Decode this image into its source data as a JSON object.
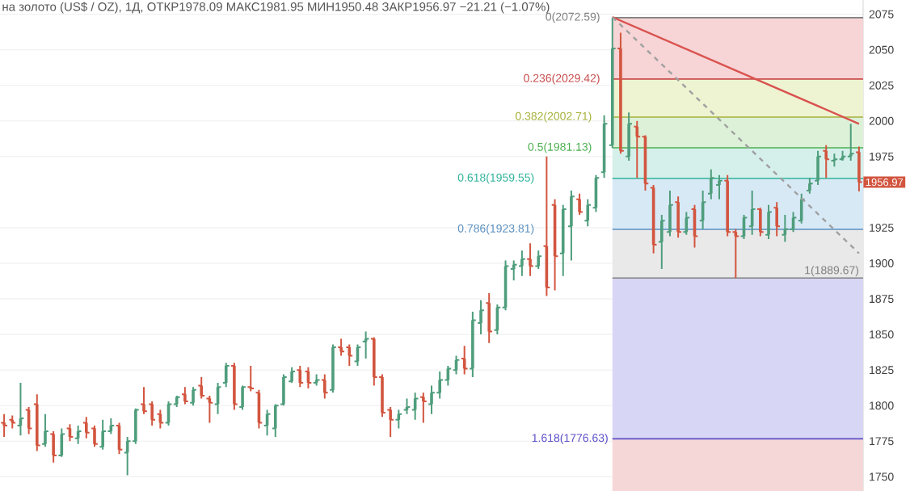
{
  "chart_data": {
    "type": "candlestick",
    "title": "на золото (US$ / OZ), 1Д, ОТКР1978.09 МАКС1981.95 МИН1950.48 ЗАКР1956.97 −21.21 (−1.07%)",
    "categories": [
      null,
      null,
      null,
      null,
      null,
      null,
      null,
      null,
      null,
      null,
      null,
      null,
      null,
      null,
      null,
      null,
      null,
      null,
      null,
      null,
      null,
      null,
      null,
      null,
      null,
      null,
      null,
      null,
      null,
      null,
      null,
      null,
      null,
      null,
      null,
      null,
      null,
      null,
      null,
      null,
      null,
      null,
      null,
      null,
      null,
      null,
      null,
      null,
      null,
      null,
      null,
      null,
      null,
      null,
      null,
      null,
      null,
      null,
      null,
      null,
      null,
      null,
      null,
      null,
      null,
      null,
      null,
      null,
      null,
      null,
      null,
      null,
      null,
      null,
      null,
      null,
      null,
      null,
      null,
      null,
      null,
      null,
      null,
      null,
      null,
      null,
      null,
      null,
      null,
      null,
      null,
      null,
      null,
      null,
      null,
      null,
      null,
      null,
      null,
      null,
      null,
      null,
      null,
      null,
      null
    ],
    "ohlc": [
      [
        1788,
        1794,
        1778,
        1786
      ],
      [
        1790,
        1793,
        1784,
        1788
      ],
      [
        1786,
        1816,
        1779,
        1791
      ],
      [
        1797,
        1799,
        1780,
        1784
      ],
      [
        1801,
        1808,
        1768,
        1772
      ],
      [
        1773,
        1794,
        1771,
        1782
      ],
      [
        1780,
        1782,
        1760,
        1765
      ],
      [
        1765,
        1784,
        1764,
        1780
      ],
      [
        1784,
        1787,
        1775,
        1778
      ],
      [
        1777,
        1786,
        1773,
        1782
      ],
      [
        1788,
        1792,
        1777,
        1781
      ],
      [
        1784,
        1786,
        1771,
        1773
      ],
      [
        1771,
        1790,
        1769,
        1782
      ],
      [
        1782,
        1791,
        1780,
        1786
      ],
      [
        1786,
        1788,
        1766,
        1769
      ],
      [
        1767,
        1778,
        1751,
        1775
      ],
      [
        1775,
        1798,
        1773,
        1797
      ],
      [
        1801,
        1813,
        1794,
        1796
      ],
      [
        1801,
        1803,
        1786,
        1790
      ],
      [
        1794,
        1797,
        1784,
        1788
      ],
      [
        1788,
        1803,
        1786,
        1801
      ],
      [
        1801,
        1807,
        1799,
        1806
      ],
      [
        1808,
        1813,
        1801,
        1803
      ],
      [
        1802,
        1813,
        1800,
        1811
      ],
      [
        1814,
        1820,
        1805,
        1807
      ],
      [
        1805,
        1807,
        1788,
        1802
      ],
      [
        1801,
        1816,
        1794,
        1813
      ],
      [
        1816,
        1830,
        1813,
        1828
      ],
      [
        1828,
        1830,
        1797,
        1801
      ],
      [
        1799,
        1814,
        1797,
        1813
      ],
      [
        1813,
        1828,
        1810,
        1812
      ],
      [
        1809,
        1811,
        1784,
        1788
      ],
      [
        1786,
        1797,
        1779,
        1794
      ],
      [
        1784,
        1801,
        1778,
        1800
      ],
      [
        1801,
        1822,
        1800,
        1820
      ],
      [
        1817,
        1827,
        1816,
        1824
      ],
      [
        1825,
        1828,
        1813,
        1816
      ],
      [
        1824,
        1827,
        1812,
        1816
      ],
      [
        1816,
        1822,
        1814,
        1818
      ],
      [
        1818,
        1822,
        1805,
        1809
      ],
      [
        1811,
        1843,
        1809,
        1841
      ],
      [
        1841,
        1847,
        1835,
        1838
      ],
      [
        1841,
        1843,
        1828,
        1835
      ],
      [
        1831,
        1843,
        1828,
        1841
      ],
      [
        1845,
        1852,
        1833,
        1847
      ],
      [
        1847,
        1848,
        1814,
        1820
      ],
      [
        1820,
        1822,
        1792,
        1795
      ],
      [
        1797,
        1799,
        1778,
        1790
      ],
      [
        1790,
        1797,
        1784,
        1794
      ],
      [
        1797,
        1805,
        1794,
        1799
      ],
      [
        1797,
        1809,
        1790,
        1805
      ],
      [
        1806,
        1809,
        1788,
        1803
      ],
      [
        1801,
        1814,
        1794,
        1809
      ],
      [
        1809,
        1824,
        1805,
        1818
      ],
      [
        1818,
        1828,
        1814,
        1826
      ],
      [
        1825,
        1835,
        1822,
        1832
      ],
      [
        1833,
        1842,
        1822,
        1826
      ],
      [
        1826,
        1866,
        1820,
        1860
      ],
      [
        1858,
        1874,
        1850,
        1867
      ],
      [
        1872,
        1879,
        1844,
        1852
      ],
      [
        1853,
        1871,
        1850,
        1869
      ],
      [
        1869,
        1902,
        1867,
        1898
      ],
      [
        1896,
        1902,
        1888,
        1899
      ],
      [
        1898,
        1909,
        1891,
        1903
      ],
      [
        1903,
        1914,
        1891,
        1898
      ],
      [
        1898,
        1909,
        1896,
        1905
      ],
      [
        1912,
        1975,
        1877,
        1883
      ],
      [
        1941,
        1945,
        1881,
        1905
      ],
      [
        1907,
        1941,
        1891,
        1938
      ],
      [
        1926,
        1951,
        1902,
        1947
      ],
      [
        1945,
        1949,
        1934,
        1936
      ],
      [
        1930,
        1945,
        1926,
        1941
      ],
      [
        1939,
        1962,
        1936,
        1960
      ],
      [
        1964,
        2004,
        1960,
        1998
      ],
      [
        1983,
        2072.59,
        1981,
        2051
      ],
      [
        2051,
        2062,
        1977,
        1979
      ],
      [
        1975,
        2006,
        1972,
        1998
      ],
      [
        1996,
        2000,
        1960,
        1989
      ],
      [
        1989,
        1990,
        1951,
        1956
      ],
      [
        1953,
        1955,
        1907,
        1913
      ],
      [
        1915,
        1934,
        1896,
        1930
      ],
      [
        1922,
        1951,
        1919,
        1941
      ],
      [
        1943,
        1947,
        1918,
        1922
      ],
      [
        1922,
        1936,
        1920,
        1932
      ],
      [
        1938,
        1941,
        1911,
        1919
      ],
      [
        1930,
        1951,
        1924,
        1943
      ],
      [
        1949,
        1966,
        1945,
        1960
      ],
      [
        1955,
        1962,
        1945,
        1958
      ],
      [
        1958,
        1962,
        1919,
        1922
      ],
      [
        1922,
        1924,
        1889.67,
        1919
      ],
      [
        1919,
        1934,
        1917,
        1932
      ],
      [
        1926,
        1951,
        1920,
        1938
      ],
      [
        1938,
        1939,
        1919,
        1922
      ],
      [
        1920,
        1941,
        1917,
        1936
      ],
      [
        1939,
        1943,
        1919,
        1926
      ],
      [
        1920,
        1934,
        1915,
        1924
      ],
      [
        1924,
        1936,
        1922,
        1932
      ],
      [
        1930,
        1949,
        1928,
        1945
      ],
      [
        1951,
        1960,
        1949,
        1956
      ],
      [
        1958,
        1979,
        1955,
        1975
      ],
      [
        1979,
        1983,
        1960,
        1973
      ],
      [
        1972,
        1977,
        1968,
        1973
      ],
      [
        1973,
        1979,
        1972,
        1975
      ],
      [
        1975,
        1998,
        1972,
        1977
      ],
      [
        1978.09,
        1981.95,
        1950.48,
        1956.97
      ]
    ],
    "colors": [
      "#d2553f",
      "#d2553f",
      "#4f9d7c",
      "#d2553f",
      "#d2553f",
      "#4f9d7c",
      "#d2553f",
      "#4f9d7c",
      "#d2553f",
      "#4f9d7c",
      "#d2553f",
      "#d2553f",
      "#4f9d7c",
      "#4f9d7c",
      "#d2553f",
      "#4f9d7c",
      "#4f9d7c",
      "#d2553f",
      "#d2553f",
      "#d2553f",
      "#4f9d7c",
      "#4f9d7c",
      "#d2553f",
      "#4f9d7c",
      "#d2553f",
      "#d2553f",
      "#4f9d7c",
      "#4f9d7c",
      "#d2553f",
      "#4f9d7c",
      "#d2553f",
      "#d2553f",
      "#4f9d7c",
      "#4f9d7c",
      "#4f9d7c",
      "#4f9d7c",
      "#d2553f",
      "#d2553f",
      "#4f9d7c",
      "#d2553f",
      "#4f9d7c",
      "#d2553f",
      "#d2553f",
      "#4f9d7c",
      "#4f9d7c",
      "#d2553f",
      "#d2553f",
      "#d2553f",
      "#4f9d7c",
      "#4f9d7c",
      "#4f9d7c",
      "#d2553f",
      "#4f9d7c",
      "#4f9d7c",
      "#4f9d7c",
      "#4f9d7c",
      "#d2553f",
      "#4f9d7c",
      "#4f9d7c",
      "#d2553f",
      "#4f9d7c",
      "#4f9d7c",
      "#4f9d7c",
      "#4f9d7c",
      "#d2553f",
      "#4f9d7c",
      "#d2553f",
      "#d2553f",
      "#4f9d7c",
      "#4f9d7c",
      "#d2553f",
      "#4f9d7c",
      "#4f9d7c",
      "#4f9d7c",
      "#4f9d7c",
      "#d2553f",
      "#4f9d7c",
      "#d2553f",
      "#d2553f",
      "#d2553f",
      "#4f9d7c",
      "#4f9d7c",
      "#d2553f",
      "#4f9d7c",
      "#d2553f",
      "#4f9d7c",
      "#4f9d7c",
      "#4f9d7c",
      "#d2553f",
      "#d2553f",
      "#4f9d7c",
      "#4f9d7c",
      "#d2553f",
      "#4f9d7c",
      "#d2553f",
      "#4f9d7c",
      "#4f9d7c",
      "#4f9d7c",
      "#4f9d7c",
      "#4f9d7c",
      "#d2553f",
      "#4f9d7c",
      "#4f9d7c",
      "#4f9d7c",
      "#d2553f"
    ],
    "series": [
      {
        "type": "line",
        "color": "#d9534f",
        "line_style": "solid",
        "values": [
          null,
          null,
          null,
          null,
          null,
          null,
          null,
          null,
          null,
          null,
          null,
          null,
          null,
          null,
          null,
          null,
          null,
          null,
          null,
          null,
          null,
          null,
          null,
          null,
          null,
          null,
          null,
          null,
          null,
          null,
          null,
          null,
          null,
          null,
          null,
          null,
          null,
          null,
          null,
          null,
          null,
          null,
          null,
          null,
          null,
          null,
          null,
          null,
          null,
          null,
          null,
          null,
          null,
          null,
          null,
          null,
          null,
          null,
          null,
          null,
          null,
          null,
          null,
          null,
          null,
          null,
          null,
          null,
          null,
          null,
          null,
          null,
          null,
          null,
          2073,
          null,
          null,
          null,
          null,
          null,
          null,
          null,
          null,
          null,
          null,
          null,
          null,
          null,
          null,
          null,
          null,
          null,
          null,
          null,
          null,
          null,
          null,
          null,
          null,
          null,
          null,
          null,
          null,
          null,
          1998
        ]
      },
      {
        "type": "line",
        "color": "#a0a0a0",
        "line_style": "dashed",
        "values": [
          null,
          null,
          null,
          null,
          null,
          null,
          null,
          null,
          null,
          null,
          null,
          null,
          null,
          null,
          null,
          null,
          null,
          null,
          null,
          null,
          null,
          null,
          null,
          null,
          null,
          null,
          null,
          null,
          null,
          null,
          null,
          null,
          null,
          null,
          null,
          null,
          null,
          null,
          null,
          null,
          null,
          null,
          null,
          null,
          null,
          null,
          null,
          null,
          null,
          null,
          null,
          null,
          null,
          null,
          null,
          null,
          null,
          null,
          null,
          null,
          null,
          null,
          null,
          null,
          null,
          null,
          null,
          null,
          null,
          null,
          null,
          null,
          null,
          null,
          2073,
          null,
          null,
          null,
          null,
          null,
          null,
          null,
          null,
          null,
          null,
          null,
          null,
          null,
          null,
          null,
          null,
          null,
          null,
          null,
          null,
          null,
          null,
          null,
          null,
          null,
          null,
          null,
          null,
          null,
          1907
        ]
      }
    ],
    "ylim": [
      1740,
      2085
    ],
    "yticks": [
      1750,
      1775,
      1800,
      1825,
      1850,
      1875,
      1900,
      1925,
      1975,
      2000,
      2025,
      2050,
      2075
    ],
    "grid": "y",
    "tick_labels": "y",
    "bands": [
      {
        "axis": "y",
        "from": 2029.42,
        "to": 2072.59,
        "color": "#f7d4d5"
      },
      {
        "axis": "y",
        "from": 2002.71,
        "to": 2029.42,
        "color": "#eef3d2"
      },
      {
        "axis": "y",
        "from": 1981.13,
        "to": 2002.71,
        "color": "#dcf1d8"
      },
      {
        "axis": "y",
        "from": 1959.55,
        "to": 1981.13,
        "color": "#d5f0ea"
      },
      {
        "axis": "y",
        "from": 1923.81,
        "to": 1959.55,
        "color": "#d8e9f6"
      },
      {
        "axis": "y",
        "from": 1889.67,
        "to": 1923.81,
        "color": "#e9e9ea"
      },
      {
        "axis": "y",
        "from": 1776.63,
        "to": 1889.67,
        "color": "#d7d6f4"
      },
      {
        "axis": "y",
        "from": 1740,
        "to": 1776.63,
        "color": "#f6d7d7"
      }
    ],
    "ref_lines": [
      {
        "axis": "y",
        "value": 2072.59,
        "label": "0(2072.59)",
        "color": "#808080"
      },
      {
        "axis": "y",
        "value": 2029.42,
        "label": "0.236(2029.42)",
        "color": "#c84b4b"
      },
      {
        "axis": "y",
        "value": 2002.71,
        "label": "0.382(2002.71)",
        "color": "#a8b23a"
      },
      {
        "axis": "y",
        "value": 1981.13,
        "label": "0.5(1981.13)",
        "color": "#4caf50"
      },
      {
        "axis": "y",
        "value": 1959.55,
        "label": "0.618(1959.55)",
        "color": "#2fb39a"
      },
      {
        "axis": "y",
        "value": 1923.81,
        "label": "0.786(1923.81)",
        "color": "#5a8fbf"
      },
      {
        "axis": "y",
        "value": 1889.67,
        "label": "1(1889.67)",
        "color": "#808080"
      },
      {
        "axis": "y",
        "value": 1776.63,
        "label": "1.618(1776.63)",
        "color": "#5b50c8"
      }
    ],
    "annotations": [
      "1956.97"
    ]
  }
}
